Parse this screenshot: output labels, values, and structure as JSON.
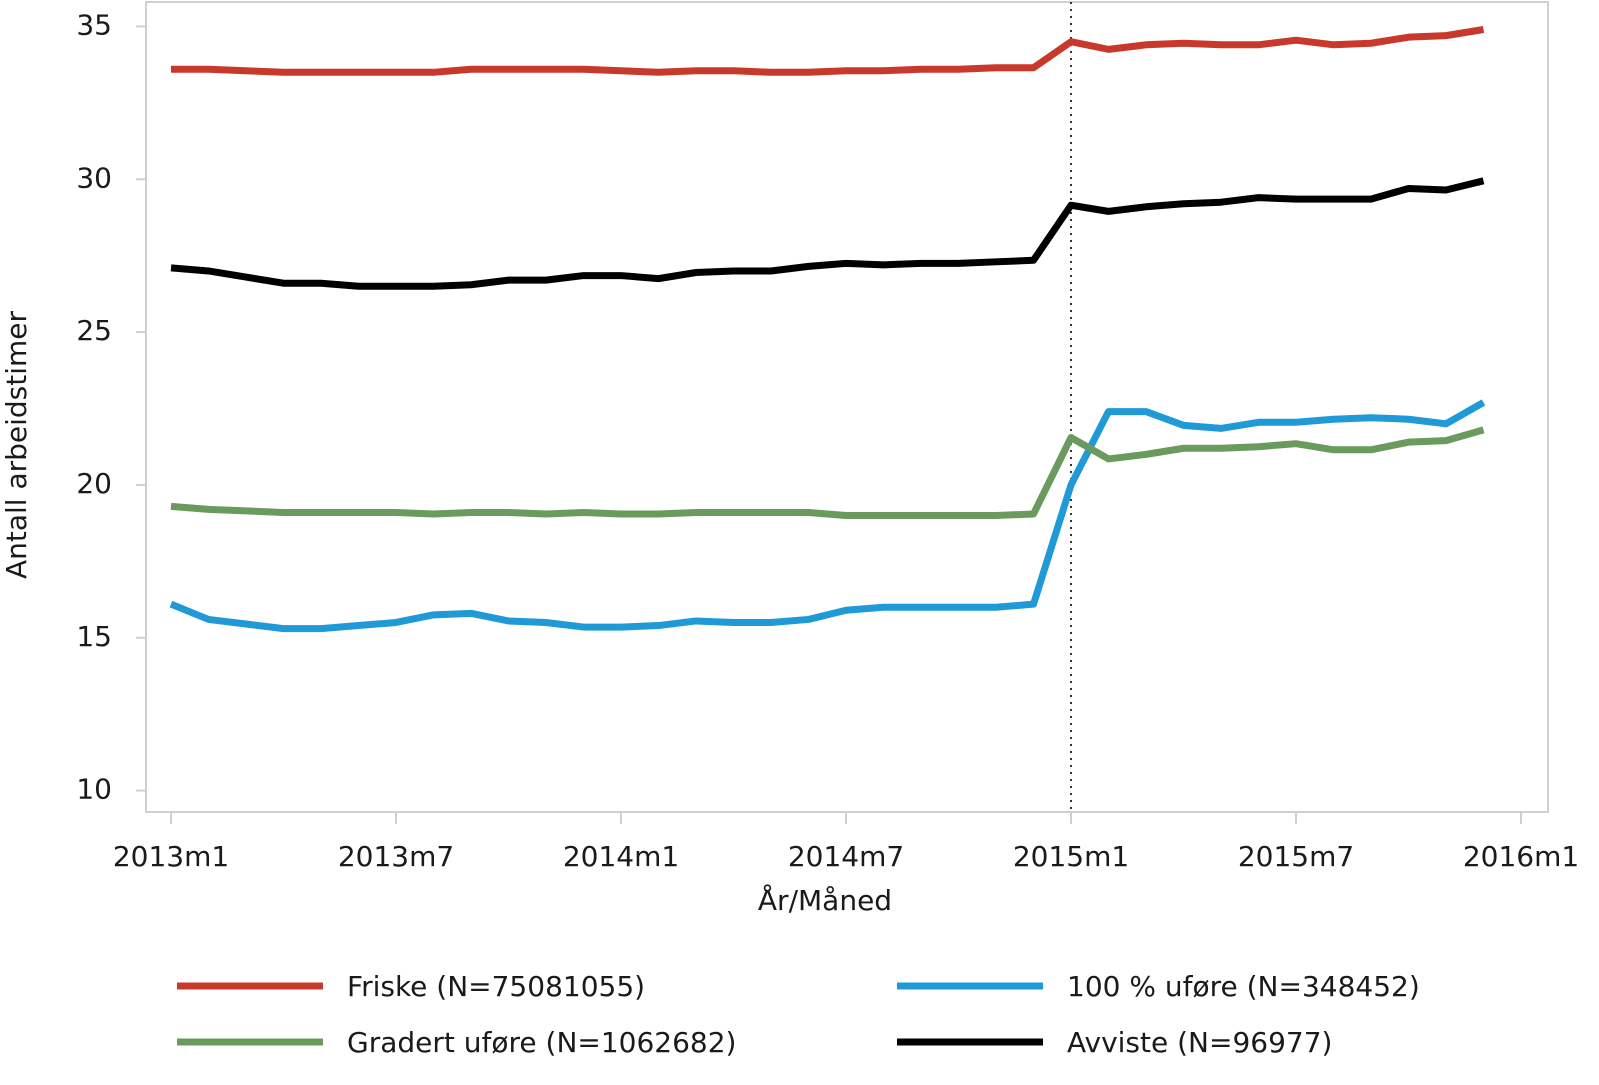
{
  "chart_data": {
    "type": "line",
    "y_label": "Antall arbeidstimer",
    "x_label": "År/Måned",
    "categories": [
      "2013m1",
      null,
      null,
      null,
      null,
      null,
      "2013m7",
      null,
      null,
      null,
      null,
      null,
      "2014m1",
      null,
      null,
      null,
      null,
      null,
      "2014m7",
      null,
      null,
      null,
      null,
      null,
      "2015m1",
      null,
      null,
      null,
      null,
      null,
      "2015m7",
      null,
      null,
      null,
      null,
      null,
      "2016m1"
    ],
    "vline_category": "2015m1",
    "ylim": [
      9.3,
      35.8
    ],
    "yticks": [
      10,
      15,
      20,
      25,
      30,
      35
    ],
    "series": [
      {
        "name": "Friske (N=75081055)",
        "color": "#c8392b",
        "values": [
          33.6,
          33.6,
          33.55,
          33.5,
          33.5,
          33.5,
          33.5,
          33.5,
          33.6,
          33.6,
          33.6,
          33.6,
          33.55,
          33.5,
          33.55,
          33.55,
          33.5,
          33.5,
          33.55,
          33.55,
          33.6,
          33.6,
          33.65,
          33.65,
          34.5,
          34.25,
          34.4,
          34.45,
          34.4,
          34.4,
          34.55,
          34.4,
          34.45,
          34.65,
          34.7,
          34.9,
          null
        ]
      },
      {
        "name": "100 % uføre (N=348452)",
        "color": "#1f9ad6",
        "values": [
          16.1,
          15.6,
          15.45,
          15.3,
          15.3,
          15.4,
          15.5,
          15.75,
          15.8,
          15.55,
          15.5,
          15.35,
          15.35,
          15.4,
          15.55,
          15.5,
          15.5,
          15.6,
          15.9,
          16.0,
          16.0,
          16.0,
          16.0,
          16.1,
          20.0,
          22.4,
          22.4,
          21.95,
          21.85,
          22.05,
          22.05,
          22.15,
          22.2,
          22.15,
          22.0,
          22.7,
          null
        ]
      },
      {
        "name": "Gradert uføre (N=1062682)",
        "color": "#6a9a5e",
        "values": [
          19.3,
          19.2,
          19.15,
          19.1,
          19.1,
          19.1,
          19.1,
          19.05,
          19.1,
          19.1,
          19.05,
          19.1,
          19.05,
          19.05,
          19.1,
          19.1,
          19.1,
          19.1,
          19.0,
          19.0,
          19.0,
          19.0,
          19.0,
          19.05,
          21.55,
          20.85,
          21.0,
          21.2,
          21.2,
          21.25,
          21.35,
          21.15,
          21.15,
          21.4,
          21.45,
          21.8,
          null
        ]
      },
      {
        "name": "Avviste (N=96977)",
        "color": "#000000",
        "values": [
          27.1,
          27.0,
          26.8,
          26.6,
          26.6,
          26.5,
          26.5,
          26.5,
          26.55,
          26.7,
          26.7,
          26.85,
          26.85,
          26.75,
          26.95,
          27.0,
          27.0,
          27.15,
          27.25,
          27.2,
          27.25,
          27.25,
          27.3,
          27.35,
          29.15,
          28.95,
          29.1,
          29.2,
          29.25,
          29.4,
          29.35,
          29.35,
          29.35,
          29.7,
          29.65,
          29.95,
          null
        ]
      }
    ]
  }
}
